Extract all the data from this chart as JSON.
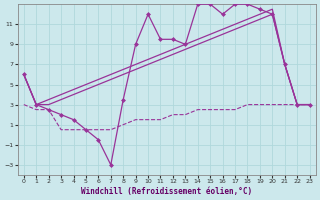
{
  "xlabel": "Windchill (Refroidissement éolien,°C)",
  "background_color": "#cce8ec",
  "grid_color": "#b0d8dc",
  "line_color": "#993399",
  "xlim": [
    -0.5,
    23.5
  ],
  "ylim": [
    -4,
    13
  ],
  "xticks": [
    0,
    1,
    2,
    3,
    4,
    5,
    6,
    7,
    8,
    9,
    10,
    11,
    12,
    13,
    14,
    15,
    16,
    17,
    18,
    19,
    20,
    21,
    22,
    23
  ],
  "yticks": [
    -3,
    -1,
    1,
    3,
    5,
    7,
    9,
    11
  ],
  "jagged_x": [
    0,
    1,
    2,
    3,
    4,
    5,
    6,
    7,
    8,
    9,
    10,
    11,
    12,
    13,
    14,
    15,
    16,
    17,
    18,
    19,
    20,
    21,
    22,
    23
  ],
  "jagged_y": [
    6,
    3,
    2.5,
    2,
    1.5,
    0.5,
    -0.5,
    -3,
    3.5,
    9,
    12,
    9.5,
    9.5,
    9,
    13,
    13,
    12,
    13,
    13,
    12.5,
    12,
    7,
    3,
    3
  ],
  "upper1_x": [
    0,
    1,
    2,
    3,
    4,
    5,
    6,
    7,
    8,
    9,
    10,
    11,
    12,
    13,
    14,
    15,
    16,
    17,
    18,
    19,
    20,
    21,
    22,
    23
  ],
  "upper1_y": [
    6,
    3,
    3.5,
    4,
    4.5,
    5,
    5.5,
    6,
    6.5,
    7,
    7.5,
    8,
    8.5,
    9,
    9.5,
    10,
    10.5,
    11,
    11.5,
    12,
    12.5,
    7,
    3,
    3
  ],
  "upper2_x": [
    0,
    1,
    2,
    3,
    4,
    5,
    6,
    7,
    8,
    9,
    10,
    11,
    12,
    13,
    14,
    15,
    16,
    17,
    18,
    19,
    20,
    21,
    22,
    23
  ],
  "upper2_y": [
    6,
    3,
    3.0,
    3.5,
    4.0,
    4.5,
    5.0,
    5.5,
    6.0,
    6.5,
    7.0,
    7.5,
    8.0,
    8.5,
    9.0,
    9.5,
    10.0,
    10.5,
    11.0,
    11.5,
    12.0,
    7,
    3,
    3
  ],
  "lower_x": [
    0,
    1,
    2,
    3,
    4,
    5,
    6,
    7,
    8,
    9,
    10,
    11,
    12,
    13,
    14,
    15,
    16,
    17,
    18,
    19,
    20,
    21,
    22,
    23
  ],
  "lower_y": [
    3,
    2.5,
    2.5,
    0.5,
    0.5,
    0.5,
    0.5,
    0.5,
    1,
    1.5,
    1.5,
    1.5,
    2,
    2,
    2.5,
    2.5,
    2.5,
    2.5,
    3,
    3,
    3,
    3,
    3,
    3
  ]
}
